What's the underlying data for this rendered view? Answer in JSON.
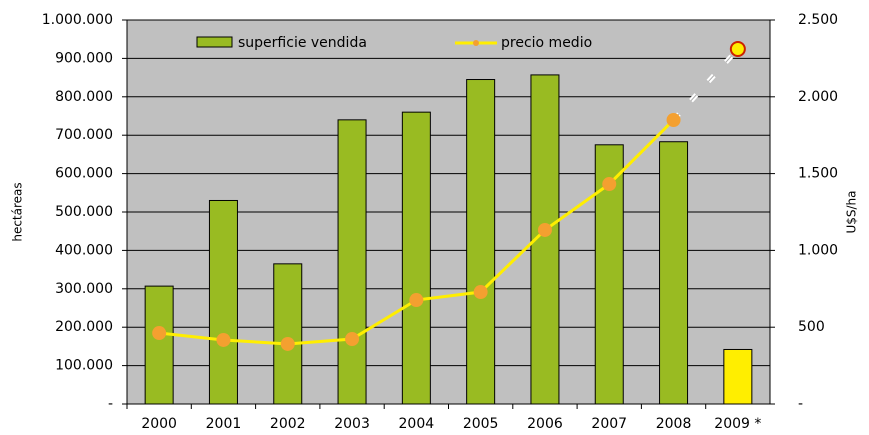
{
  "chart_data": {
    "type": "bar_line",
    "y_label": "hectáreas",
    "y2_label": "U$S/ha",
    "categories": [
      "2000",
      "2001",
      "2002",
      "2003",
      "2004",
      "2005",
      "2006",
      "2007",
      "2008",
      "2009 *"
    ],
    "estimated": [
      false,
      false,
      false,
      false,
      false,
      false,
      false,
      false,
      false,
      true
    ],
    "series": [
      {
        "name": "superficie vendida",
        "type": "bar",
        "color": "#99bb22",
        "colors": [
          "#99bb22",
          "#99bb22",
          "#99bb22",
          "#99bb22",
          "#99bb22",
          "#99bb22",
          "#99bb22",
          "#99bb22",
          "#99bb22",
          "#ffee00"
        ],
        "values": [
          307000,
          530000,
          365000,
          740000,
          760000,
          845000,
          857000,
          675000,
          683000,
          142000
        ]
      },
      {
        "name": "precio medio",
        "type": "line",
        "axis": "y2",
        "color": "#ffee00",
        "marker_color": "#f4a030",
        "marker_colors": [
          "#f4a030",
          "#f4a030",
          "#f4a030",
          "#f4a030",
          "#f4a030",
          "#f4a030",
          "#f4a030",
          "#f4a030",
          "#f4a030",
          "#ffee00"
        ],
        "values": [
          462,
          417,
          391,
          423,
          677,
          729,
          1133,
          1432,
          1849,
          2311
        ]
      }
    ],
    "ylim": [
      0,
      1000000
    ],
    "yticks": [
      {
        "value": 0,
        "label": "-"
      },
      {
        "value": 100000,
        "label": "100.000"
      },
      {
        "value": 200000,
        "label": "200.000"
      },
      {
        "value": 300000,
        "label": "300.000"
      },
      {
        "value": 400000,
        "label": "400.000"
      },
      {
        "value": 500000,
        "label": "500.000"
      },
      {
        "value": 600000,
        "label": "600.000"
      },
      {
        "value": 700000,
        "label": "700.000"
      },
      {
        "value": 800000,
        "label": "800.000"
      },
      {
        "value": 900000,
        "label": "900.000"
      },
      {
        "value": 1000000,
        "label": "1.000.000"
      }
    ],
    "y2lim": [
      0,
      2500
    ],
    "y2ticks": [
      {
        "value": 0,
        "label": "-"
      },
      500,
      {
        "value": 1000,
        "label": "1.000"
      },
      {
        "value": 1500,
        "label": "1.500"
      },
      {
        "value": 2000,
        "label": "2.000"
      },
      {
        "value": 2500,
        "label": "2.500"
      }
    ],
    "grid": true,
    "legend": "top"
  }
}
